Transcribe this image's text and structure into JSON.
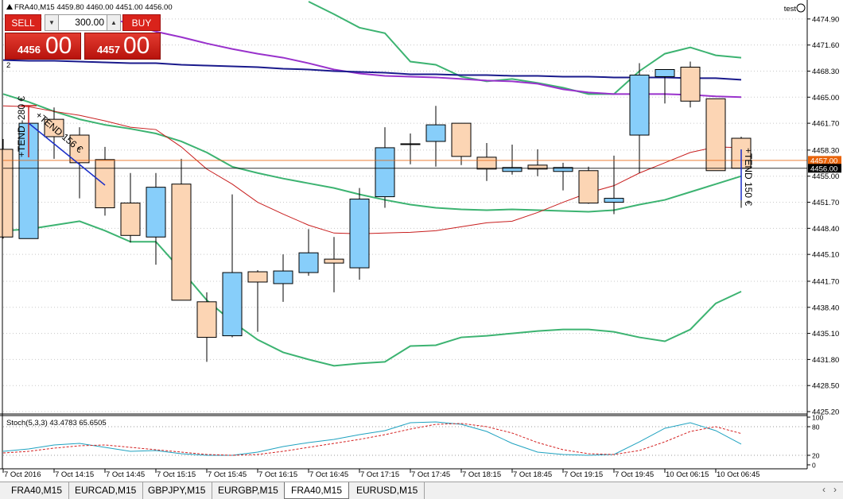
{
  "chart_data": [
    {
      "type": "candlestick",
      "header": "FRA40,M15  4459.80 4460.00 4451.00 4456.00",
      "categories": [
        "7 Oct 2016",
        null,
        "7 Oct 14:15",
        null,
        "7 Oct 14:45",
        null,
        "7 Oct 15:15",
        null,
        "7 Oct 15:45",
        null,
        "7 Oct 16:15",
        null,
        "7 Oct 16:45",
        null,
        "7 Oct 17:15",
        null,
        "7 Oct 17:45",
        null,
        "7 Oct 18:15",
        null,
        "7 Oct 18:45",
        null,
        "7 Oct 19:15",
        null,
        "7 Oct 19:45",
        null,
        "10 Oct 06:15",
        null,
        "10 Oct 06:45",
        null
      ],
      "open": [
        4458.4,
        4447.1,
        4462.2,
        4460.2,
        4457.1,
        4451.6,
        4447.3,
        4454.0,
        4439.1,
        4434.8,
        4442.9,
        4441.4,
        4442.8,
        4444.5,
        4443.4,
        4452.4,
        4459.1,
        4459.4,
        4461.7,
        4457.4,
        4455.6,
        4456.4,
        4455.6,
        4455.7,
        4451.7,
        4460.2,
        4467.6,
        4468.8,
        4464.8,
        4459.8
      ],
      "high": [
        4459.7,
        4462.7,
        4463.7,
        4461.2,
        4458.7,
        4455.4,
        4455.4,
        4457.2,
        4440.3,
        4452.7,
        4443.1,
        4445.1,
        4448.3,
        4447.3,
        4453.5,
        4461.2,
        4460.4,
        4463.9,
        4461.7,
        4459.2,
        4459.0,
        4458.4,
        4456.7,
        4456.2,
        4457.6,
        4469.3,
        4468.5,
        4469.5,
        4464.8,
        4460.0
      ],
      "low": [
        4447.1,
        4447.1,
        4457.2,
        4452.2,
        4450.0,
        4446.6,
        4443.8,
        4439.3,
        4431.5,
        4434.6,
        4435.3,
        4439.1,
        4442.4,
        4440.3,
        4441.9,
        4451.0,
        4456.5,
        4456.2,
        4456.4,
        4454.4,
        4455.2,
        4455.0,
        4453.2,
        4451.5,
        4450.2,
        4455.4,
        4464.2,
        4463.7,
        4455.7,
        4451.0
      ],
      "close": [
        4447.3,
        4461.7,
        4460.0,
        4456.7,
        4451.0,
        4447.5,
        4453.6,
        4439.3,
        4434.6,
        4442.8,
        4441.6,
        4443.0,
        4445.3,
        4444.0,
        4452.1,
        4458.6,
        4459.0,
        4461.5,
        4457.5,
        4455.9,
        4456.1,
        4455.9,
        4456.1,
        4451.6,
        4452.2,
        4467.8,
        4468.5,
        4464.5,
        4455.7,
        4456.0
      ],
      "up_color": "#87cefa",
      "down_color": "#fcd5b4",
      "series": [
        {
          "color": "#3cb371",
          "values": [
            4465.4,
            4464.4,
            4463.2,
            4462.2,
            4461.5,
            4461.0,
            4460.4,
            4459.4,
            4458.0,
            4456.2,
            4455.4,
            4454.7,
            4454.1,
            4453.5,
            4452.7,
            4452.0,
            4451.4,
            4451.0,
            4450.8,
            4450.7,
            4450.8,
            4450.7,
            4450.6,
            4450.5,
            4450.7,
            4451.4,
            4452.0,
            4453.0,
            4454.0,
            4455.0
          ]
        },
        {
          "color": "#3cb371",
          "values": [
            4448.1,
            4448.3,
            4448.8,
            4449.3,
            4448.1,
            4446.7,
            4446.7,
            4443.1,
            4439.3,
            4436.6,
            4434.3,
            4432.7,
            4431.8,
            4431.0,
            4431.3,
            4431.5,
            4433.5,
            4433.6,
            4434.6,
            4434.8,
            4435.1,
            4435.4,
            4435.6,
            4435.6,
            4435.3,
            4434.6,
            4434.1,
            4435.6,
            4438.9,
            4440.4
          ]
        },
        {
          "color": "#3cb371",
          "values": [
            null,
            null,
            null,
            null,
            null,
            null,
            null,
            null,
            null,
            null,
            null,
            null,
            4477.1,
            4475.5,
            4473.8,
            4473.1,
            4469.5,
            4469.1,
            4467.6,
            4467.0,
            4467.3,
            4466.8,
            4466.2,
            4465.4,
            4465.4,
            4468.3,
            4470.5,
            4471.3,
            4470.3,
            4470.0
          ]
        },
        {
          "color": "#c81e1e",
          "values": [
            4463.9,
            4463.8,
            4463.2,
            4462.7,
            4462.0,
            4461.2,
            4460.9,
            4458.7,
            4455.9,
            4454.0,
            4451.7,
            4450.2,
            4448.8,
            4447.8,
            4447.7,
            4447.8,
            4447.9,
            4448.1,
            4448.6,
            4449.1,
            4449.3,
            4450.4,
            4451.7,
            4452.9,
            4453.8,
            4455.4,
            4456.7,
            4458.0,
            4458.7,
            4458.6
          ]
        },
        {
          "color": "#9932cc",
          "values": [
            null,
            null,
            null,
            null,
            4475.1,
            4474.3,
            4473.3,
            4472.6,
            4471.8,
            4471.1,
            4470.5,
            4470.0,
            4469.3,
            4468.5,
            4468.0,
            4467.7,
            4467.6,
            4467.5,
            4467.3,
            4467.1,
            4467.0,
            4466.7,
            4466.0,
            4465.6,
            4465.4,
            4465.4,
            4465.4,
            4465.3,
            4465.1,
            4465.0
          ]
        },
        {
          "color": "#1a1a8c",
          "values": [
            4469.7,
            4469.6,
            4469.6,
            4469.5,
            4469.4,
            4469.3,
            4469.3,
            4469.1,
            4469.0,
            4468.9,
            4468.8,
            4468.6,
            4468.5,
            4468.3,
            4468.2,
            4468.1,
            4467.9,
            4467.9,
            4467.8,
            4467.8,
            4467.7,
            4467.7,
            4467.6,
            4467.6,
            4467.5,
            4467.5,
            4467.5,
            4467.4,
            4467.4,
            4467.2
          ]
        }
      ],
      "price_lines": [
        {
          "value": 4457,
          "label": "4457.00",
          "color": "#e8630a"
        },
        {
          "value": 4456,
          "label": "4456.00",
          "color": "#000000"
        }
      ],
      "annotations": [
        "+TEND -280 €",
        "+TEND 156 €",
        "+TEND 150 €"
      ],
      "ylim": [
        4424.9,
        4477.3
      ],
      "yticks": [
        {
          "value": 4474.9,
          "label": "4474.90"
        },
        {
          "value": 4471.6,
          "label": "4471.60"
        },
        {
          "value": 4468.3,
          "label": "4468.30"
        },
        {
          "value": 4465.0,
          "label": "4465.00"
        },
        {
          "value": 4461.7,
          "label": "4461.70"
        },
        {
          "value": 4458.3,
          "label": "4458.30"
        },
        {
          "value": 4455.0,
          "label": "4455.00"
        },
        {
          "value": 4451.7,
          "label": "4451.70"
        },
        {
          "value": 4448.4,
          "label": "4448.40"
        },
        {
          "value": 4445.1,
          "label": "4445.10"
        },
        {
          "value": 4441.7,
          "label": "4441.70"
        },
        {
          "value": 4438.4,
          "label": "4438.40"
        },
        {
          "value": 4435.1,
          "label": "4435.10"
        },
        {
          "value": 4431.8,
          "label": "4431.80"
        },
        {
          "value": 4428.5,
          "label": "4428.50"
        },
        {
          "value": 4425.2,
          "label": "4425.20"
        }
      ],
      "grid": true
    },
    {
      "type": "line",
      "title": "Stoch(5,3,3) 43.4783 65.6505",
      "series": [
        {
          "color": "#1fa2c0",
          "dashed": false,
          "values": [
            28.3,
            33.3,
            41.7,
            45,
            36.7,
            28.3,
            30,
            23.3,
            20,
            20,
            26.7,
            38.3,
            46.7,
            53.3,
            63.3,
            71.7,
            88.3,
            90,
            85,
            70,
            45,
            26.7,
            21.7,
            20,
            21.7,
            48.3,
            76.7,
            88.3,
            71.7,
            43.5
          ]
        },
        {
          "color": "#d42020",
          "dashed": true,
          "values": [
            25,
            28.3,
            35,
            40,
            41.7,
            36.7,
            31.7,
            26.7,
            21.7,
            20,
            21.7,
            28.3,
            36.7,
            45,
            53.3,
            63.3,
            75,
            85,
            86.7,
            80,
            66.7,
            46.7,
            31.7,
            23.3,
            21.7,
            30,
            48.3,
            70,
            80,
            65.7
          ]
        }
      ],
      "ylim": [
        0,
        100
      ],
      "yticks": [
        0,
        20,
        80,
        100
      ],
      "levels": [
        20,
        80
      ]
    }
  ],
  "window_index": "2",
  "user": "test",
  "trade_panel": {
    "sell": "SELL",
    "buy": "BUY",
    "volume": "300.00",
    "sell_price": [
      "4456",
      "00"
    ],
    "buy_price": [
      "4457",
      "00"
    ]
  },
  "tabs": [
    "FRA40,M15",
    "EURCAD,M15",
    "GBPJPY,M15",
    "EURGBP,M15",
    "FRA40,M15",
    "EURUSD,M15"
  ],
  "active_tab": 4
}
